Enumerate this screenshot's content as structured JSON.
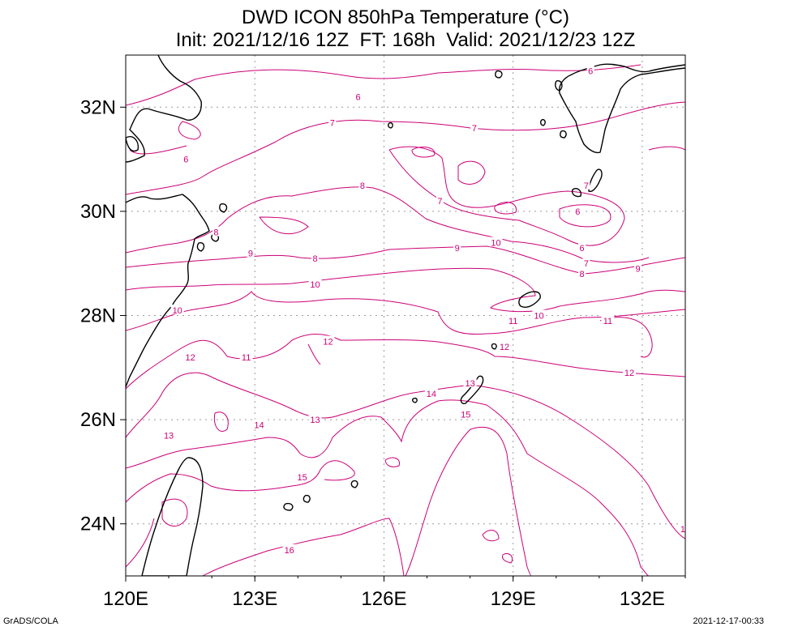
{
  "title_line1": "DWD ICON 850hPa Temperature (°C)",
  "title_line2": "Init: 2021/12/16 12Z  FT: 168h  Valid: 2021/12/23 12Z",
  "footer_left": "GrADS/COLA",
  "footer_right": "2021-12-17-00:33",
  "colors": {
    "contour": "#cc0077",
    "coast": "#000000",
    "grid": "#9a9a9a"
  },
  "chart_data": {
    "type": "contour",
    "x_ticks": [
      {
        "value": 120,
        "label": "120E"
      },
      {
        "value": 123,
        "label": "123E"
      },
      {
        "value": 126,
        "label": "126E"
      },
      {
        "value": 129,
        "label": "129E"
      },
      {
        "value": 132,
        "label": "132E"
      }
    ],
    "y_ticks": [
      {
        "value": 24,
        "label": "24N"
      },
      {
        "value": 26,
        "label": "26N"
      },
      {
        "value": 28,
        "label": "28N"
      },
      {
        "value": 30,
        "label": "30N"
      },
      {
        "value": 32,
        "label": "32N"
      }
    ],
    "xlim": [
      120,
      133
    ],
    "ylim": [
      23,
      33
    ],
    "grid": true,
    "contour_labels": [
      {
        "text": "6",
        "lon": 125.4,
        "lat": 32.2
      },
      {
        "text": "6",
        "lon": 130.8,
        "lat": 32.7
      },
      {
        "text": "6",
        "lon": 121.4,
        "lat": 31.0
      },
      {
        "text": "6",
        "lon": 130.5,
        "lat": 30.0
      },
      {
        "text": "6",
        "lon": 130.6,
        "lat": 29.3
      },
      {
        "text": "7",
        "lon": 124.8,
        "lat": 31.7
      },
      {
        "text": "7",
        "lon": 128.1,
        "lat": 31.6
      },
      {
        "text": "7",
        "lon": 130.7,
        "lat": 30.5
      },
      {
        "text": "7",
        "lon": 127.3,
        "lat": 30.2
      },
      {
        "text": "7",
        "lon": 130.7,
        "lat": 29.0
      },
      {
        "text": "8",
        "lon": 125.5,
        "lat": 30.5
      },
      {
        "text": "8",
        "lon": 122.1,
        "lat": 29.6
      },
      {
        "text": "8",
        "lon": 124.4,
        "lat": 29.1
      },
      {
        "text": "8",
        "lon": 130.6,
        "lat": 28.8
      },
      {
        "text": "9",
        "lon": 122.9,
        "lat": 29.2
      },
      {
        "text": "9",
        "lon": 127.7,
        "lat": 29.3
      },
      {
        "text": "9",
        "lon": 131.9,
        "lat": 28.9
      },
      {
        "text": "10",
        "lon": 124.4,
        "lat": 28.6
      },
      {
        "text": "10",
        "lon": 128.6,
        "lat": 29.4
      },
      {
        "text": "10",
        "lon": 121.2,
        "lat": 28.1
      },
      {
        "text": "10",
        "lon": 129.6,
        "lat": 28.0
      },
      {
        "text": "11",
        "lon": 129.0,
        "lat": 27.9
      },
      {
        "text": "11",
        "lon": 131.2,
        "lat": 27.9
      },
      {
        "text": "11",
        "lon": 122.8,
        "lat": 27.2
      },
      {
        "text": "12",
        "lon": 121.5,
        "lat": 27.2
      },
      {
        "text": "12",
        "lon": 124.7,
        "lat": 27.5
      },
      {
        "text": "12",
        "lon": 128.8,
        "lat": 27.4
      },
      {
        "text": "12",
        "lon": 131.7,
        "lat": 26.9
      },
      {
        "text": "13",
        "lon": 128.0,
        "lat": 26.7
      },
      {
        "text": "13",
        "lon": 124.4,
        "lat": 26.0
      },
      {
        "text": "13",
        "lon": 121.0,
        "lat": 25.7
      },
      {
        "text": "13",
        "lon": 133.0,
        "lat": 23.9
      },
      {
        "text": "14",
        "lon": 127.1,
        "lat": 26.5
      },
      {
        "text": "14",
        "lon": 123.1,
        "lat": 25.9
      },
      {
        "text": "15",
        "lon": 127.9,
        "lat": 26.1
      },
      {
        "text": "15",
        "lon": 124.1,
        "lat": 24.9
      },
      {
        "text": "16",
        "lon": 123.8,
        "lat": 23.5
      }
    ]
  }
}
